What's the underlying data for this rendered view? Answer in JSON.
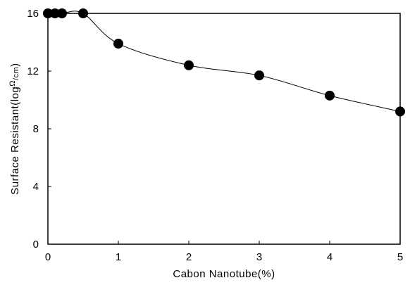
{
  "chart_data": {
    "type": "scatter",
    "title": "",
    "xlabel": "Cabon Nanotube(%)",
    "ylabel": {
      "prefix": "Surface Resistant(log",
      "sup": "Ω",
      "sub": "/cm",
      "suffix": ")"
    },
    "xlim": [
      0,
      5
    ],
    "ylim": [
      0,
      16
    ],
    "xticks": [
      0,
      1,
      2,
      3,
      4,
      5
    ],
    "yticks": [
      0,
      4,
      8,
      12,
      16
    ],
    "grid": false,
    "legend": "none",
    "series": [
      {
        "x": [
          0,
          0.1,
          0.2,
          0.5,
          1,
          2,
          3,
          4,
          5
        ],
        "y": [
          16,
          16,
          16,
          16,
          13.9,
          12.4,
          11.7,
          10.3,
          9.2
        ],
        "marker": "filled-circle",
        "line": "smooth",
        "color": "#000000"
      }
    ]
  }
}
